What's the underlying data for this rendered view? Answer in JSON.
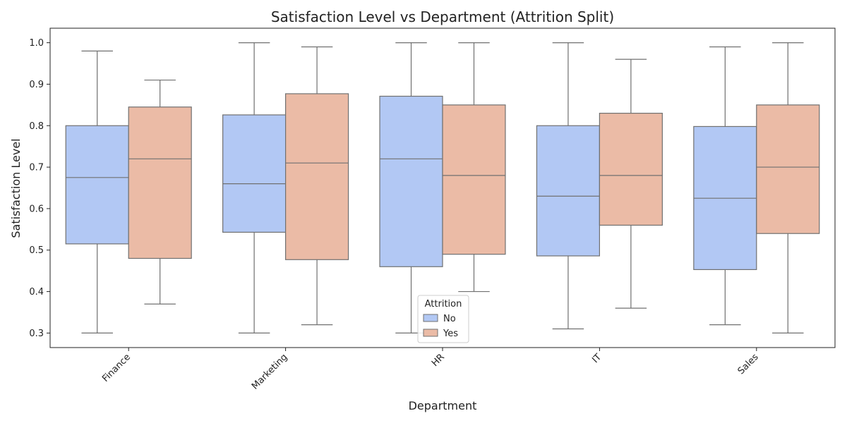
{
  "chart_data": {
    "type": "boxplot",
    "title": "Satisfaction Level vs Department (Attrition Split)",
    "xlabel": "Department",
    "ylabel": "Satisfaction Level",
    "ylim": [
      0.265,
      1.035
    ],
    "yticks": [
      "0.3",
      "0.4",
      "0.5",
      "0.6",
      "0.7",
      "0.8",
      "0.9",
      "1.0"
    ],
    "categories": [
      "Finance",
      "Marketing",
      "HR",
      "IT",
      "Sales"
    ],
    "legend": {
      "title": "Attrition",
      "placement": "lower-center"
    },
    "series": [
      {
        "name": "No",
        "color": "#b2c8f4",
        "boxes": [
          {
            "min": 0.3,
            "q1": 0.515,
            "median": 0.675,
            "q3": 0.8,
            "max": 0.98
          },
          {
            "min": 0.3,
            "q1": 0.543,
            "median": 0.66,
            "q3": 0.826,
            "max": 1.0
          },
          {
            "min": 0.3,
            "q1": 0.46,
            "median": 0.72,
            "q3": 0.871,
            "max": 1.0
          },
          {
            "min": 0.31,
            "q1": 0.486,
            "median": 0.63,
            "q3": 0.8,
            "max": 1.0
          },
          {
            "min": 0.32,
            "q1": 0.453,
            "median": 0.625,
            "q3": 0.798,
            "max": 0.99
          }
        ]
      },
      {
        "name": "Yes",
        "color": "#ebbba6",
        "boxes": [
          {
            "min": 0.37,
            "q1": 0.48,
            "median": 0.72,
            "q3": 0.845,
            "max": 0.91
          },
          {
            "min": 0.32,
            "q1": 0.477,
            "median": 0.71,
            "q3": 0.877,
            "max": 0.99
          },
          {
            "min": 0.4,
            "q1": 0.49,
            "median": 0.68,
            "q3": 0.85,
            "max": 1.0
          },
          {
            "min": 0.36,
            "q1": 0.56,
            "median": 0.68,
            "q3": 0.83,
            "max": 0.96
          },
          {
            "min": 0.3,
            "q1": 0.54,
            "median": 0.7,
            "q3": 0.85,
            "max": 1.0
          }
        ]
      }
    ],
    "colors": {
      "whisker": "#707070",
      "axis": "#222222"
    }
  }
}
